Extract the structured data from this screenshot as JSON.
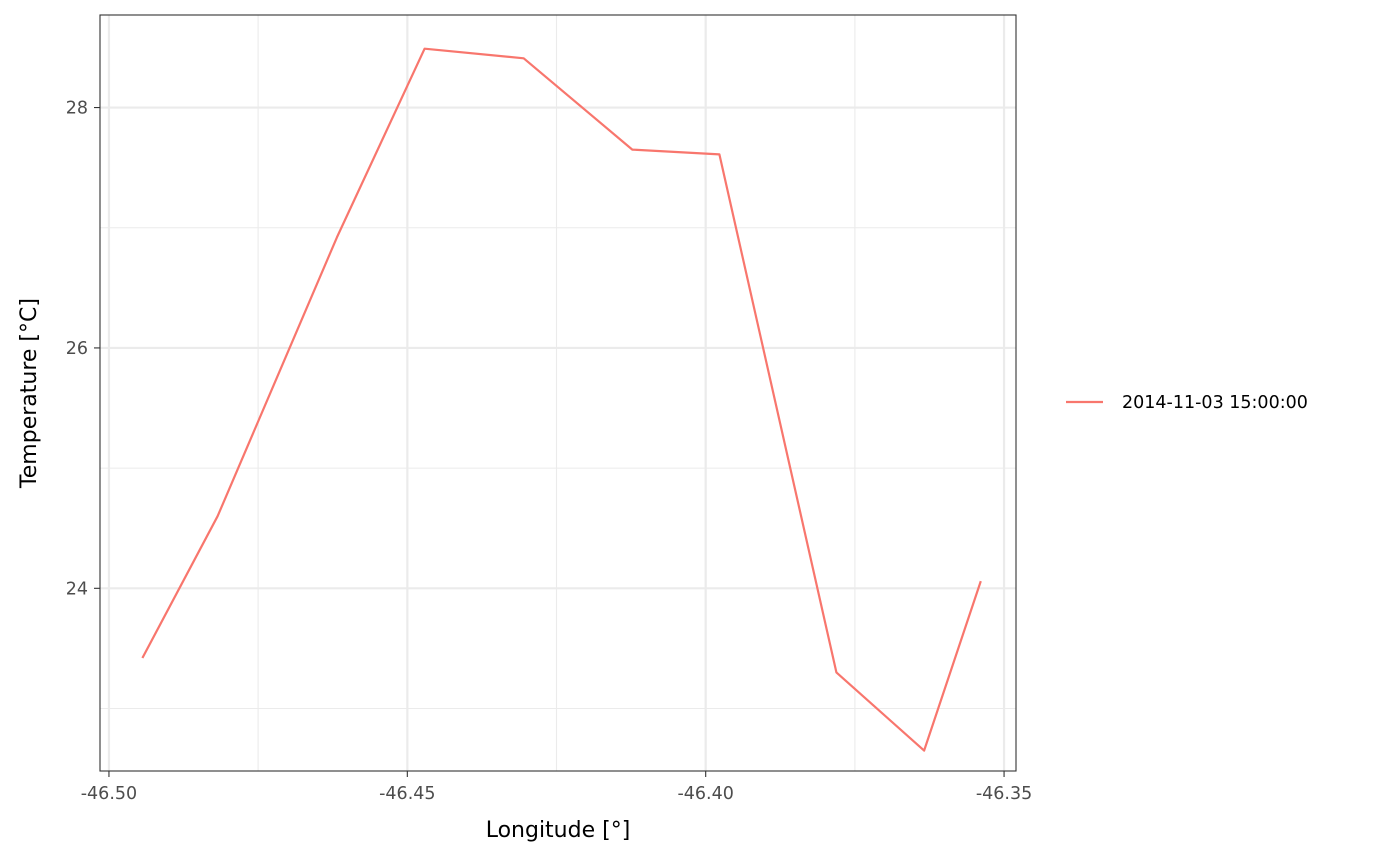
{
  "chart_data": {
    "type": "line",
    "xlabel": "Longitude [°]",
    "ylabel": "Temperature [°C]",
    "xlim": [
      -46.5015,
      -46.348
    ],
    "ylim": [
      22.48,
      28.77
    ],
    "x_ticks": [
      -46.5,
      -46.45,
      -46.4,
      -46.35
    ],
    "x_tick_labels": [
      "-46.50",
      "-46.45",
      "-46.40",
      "-46.35"
    ],
    "x_minor_ticks": [
      -46.475,
      -46.425,
      -46.375
    ],
    "y_ticks": [
      24,
      26,
      28
    ],
    "y_tick_labels": [
      "24",
      "26",
      "28"
    ],
    "y_minor_ticks": [
      23,
      25,
      27
    ],
    "grid": true,
    "legend": {
      "position": "right",
      "entries": [
        "2014-11-03 15:00:00"
      ]
    },
    "series": [
      {
        "name": "2014-11-03 15:00:00",
        "color": "#F8766D",
        "points": [
          {
            "x": -46.4944,
            "y": 23.42
          },
          {
            "x": -46.4818,
            "y": 24.6
          },
          {
            "x": -46.4618,
            "y": 26.92
          },
          {
            "x": -46.4471,
            "y": 28.49
          },
          {
            "x": -46.4305,
            "y": 28.41
          },
          {
            "x": -46.4123,
            "y": 27.65
          },
          {
            "x": -46.3977,
            "y": 27.61
          },
          {
            "x": -46.3781,
            "y": 23.3
          },
          {
            "x": -46.3634,
            "y": 22.65
          },
          {
            "x": -46.3539,
            "y": 24.06
          }
        ]
      }
    ]
  }
}
